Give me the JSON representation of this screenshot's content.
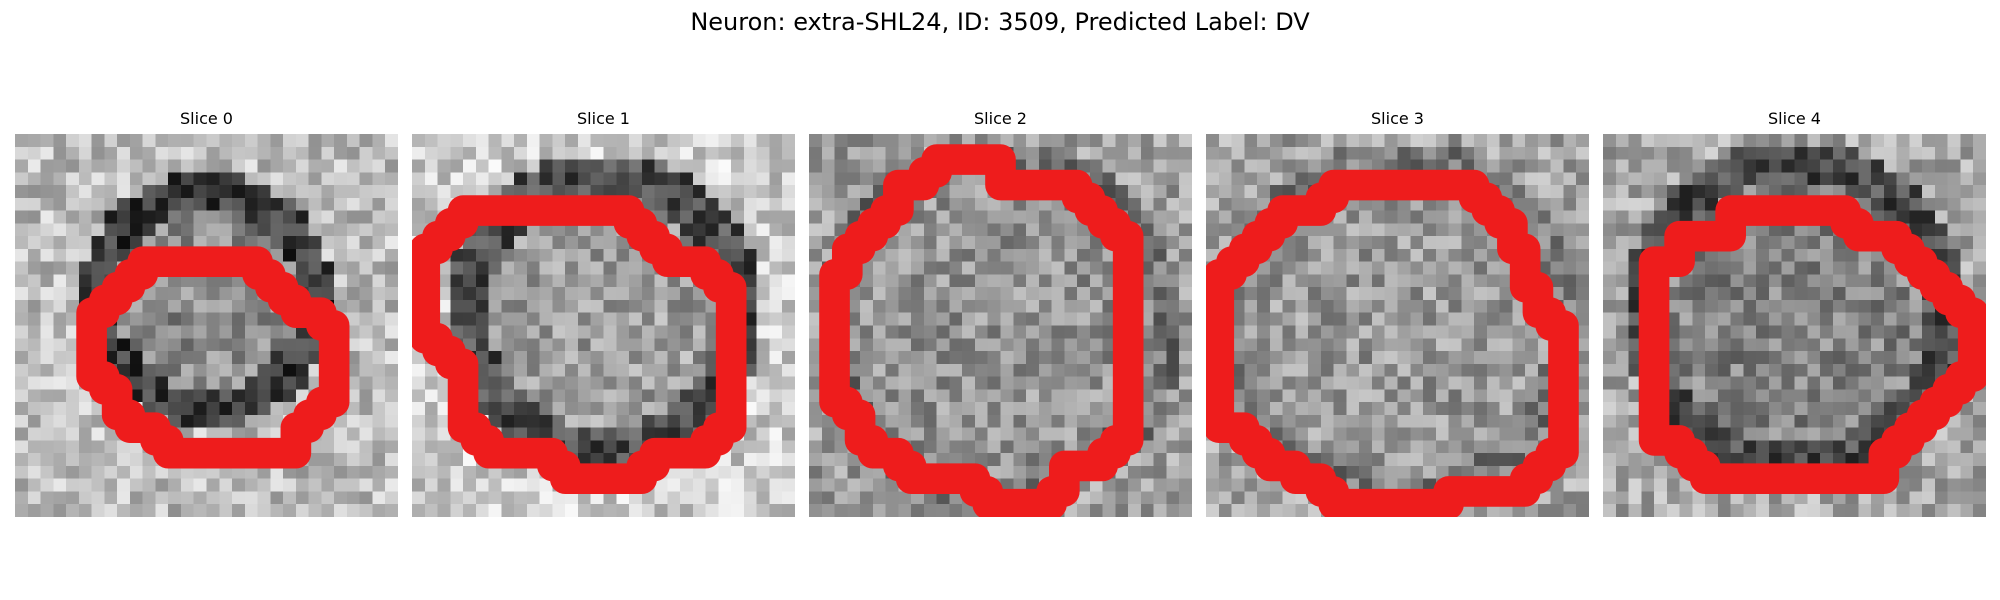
{
  "figure": {
    "title": "Neuron: extra-SHL24, ID: 3509, Predicted Label: DV"
  },
  "colors": {
    "contour": "#ee1c1c",
    "background": "#ffffff",
    "grayscale_cmap": "gray"
  },
  "panels": [
    {
      "title": "Slice 0"
    },
    {
      "title": "Slice 1"
    },
    {
      "title": "Slice 2"
    },
    {
      "title": "Slice 3"
    },
    {
      "title": "Slice 4"
    }
  ]
}
